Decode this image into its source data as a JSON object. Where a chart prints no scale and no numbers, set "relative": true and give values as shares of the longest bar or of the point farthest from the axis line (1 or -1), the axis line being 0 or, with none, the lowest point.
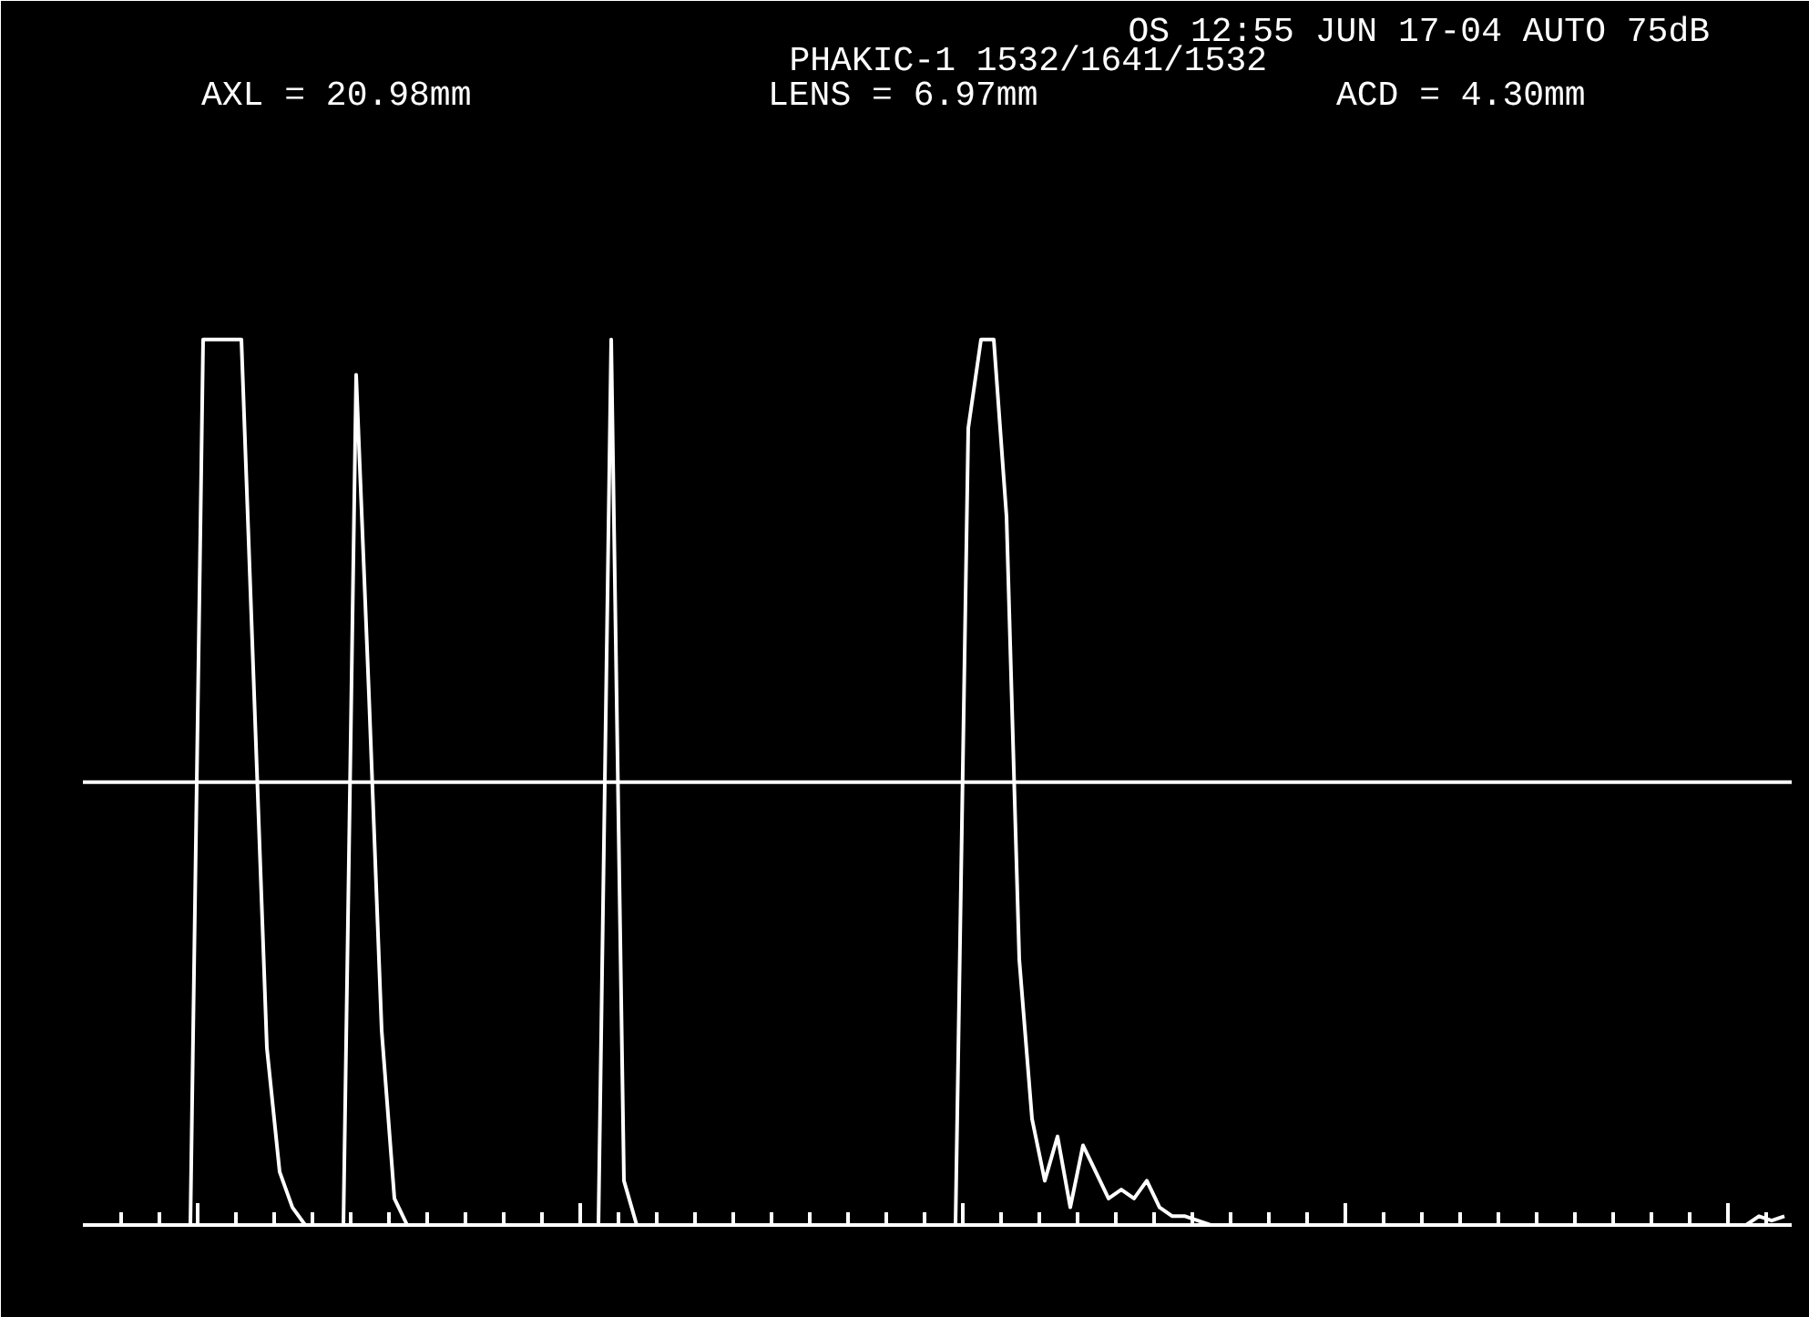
{
  "chart_data": {
    "type": "line",
    "title": "OS 12:55 JUN 17-04 AUTO 75dB",
    "subtitle": "PHAKIC-1 1532/1641/1532",
    "annotations": [
      "AXL = 20.98mm",
      "LENS = 6.97mm",
      "ACD = 4.30mm"
    ],
    "relative": true,
    "grid": false,
    "tick_labels": false,
    "marker": "none",
    "line_style": "solid",
    "categories": [
      null,
      null,
      null,
      null,
      null,
      null,
      null,
      null,
      null,
      null,
      null,
      null,
      null,
      null,
      null,
      null,
      null,
      null,
      null,
      null,
      null,
      null,
      null,
      null,
      null,
      null,
      null,
      null,
      null,
      null,
      null,
      null,
      null,
      null,
      null,
      null,
      null,
      null,
      null,
      null,
      null,
      null,
      null,
      null,
      null,
      null,
      null,
      null,
      null,
      null,
      null,
      null,
      null,
      null,
      null,
      null,
      null,
      null,
      null,
      null,
      null,
      null,
      null,
      null,
      null,
      null,
      null,
      null,
      null,
      null,
      null,
      null,
      null,
      null,
      null,
      null,
      null,
      null,
      null,
      null,
      null,
      null,
      null,
      null,
      null,
      null,
      null,
      null,
      null,
      null,
      null,
      null,
      null,
      null,
      null,
      null,
      null,
      null,
      null,
      null,
      null,
      null,
      null,
      null,
      null,
      null,
      null,
      null,
      null,
      null,
      null,
      null,
      null,
      null,
      null,
      null,
      null,
      null,
      null,
      null,
      null,
      null,
      null,
      null,
      null,
      null,
      null,
      null,
      null,
      null,
      null,
      null,
      null,
      null
    ],
    "series": [
      {
        "color": "#ffffff",
        "values": [
          0,
          0,
          0,
          0,
          0,
          0,
          0,
          0,
          0,
          1,
          1,
          1,
          1,
          0.6,
          0.2,
          0.06,
          0.02,
          0,
          0,
          0,
          0,
          0.96,
          0.6,
          0.22,
          0.03,
          0,
          0,
          0,
          0,
          0,
          0,
          0,
          0,
          0,
          0,
          0,
          0,
          0,
          0,
          0,
          0,
          1,
          0.05,
          0,
          0,
          0,
          0,
          0,
          0,
          0,
          0,
          0,
          0,
          0,
          0,
          0,
          0,
          0,
          0,
          0,
          0,
          0,
          0,
          0,
          0,
          0,
          0,
          0,
          0,
          0.9,
          1,
          1,
          0.8,
          0.3,
          0.12,
          0.05,
          0.1,
          0.02,
          0.09,
          0.06,
          0.03,
          0.04,
          0.03,
          0.05,
          0.02,
          0.01,
          0.01,
          0.005,
          0,
          0,
          0,
          0,
          0,
          0,
          0,
          0,
          0,
          0,
          0,
          0,
          0,
          0,
          0,
          0,
          0,
          0,
          0,
          0,
          0,
          0,
          0,
          0,
          0,
          0,
          0,
          0,
          0,
          0,
          0,
          0,
          0,
          0,
          0,
          0,
          0,
          0,
          0,
          0,
          0,
          0,
          0,
          0.01,
          0.005,
          0.01
        ]
      }
    ],
    "ref_lines": [
      {
        "axis": "y",
        "value": 0.5,
        "color": "#ffffff"
      }
    ]
  }
}
